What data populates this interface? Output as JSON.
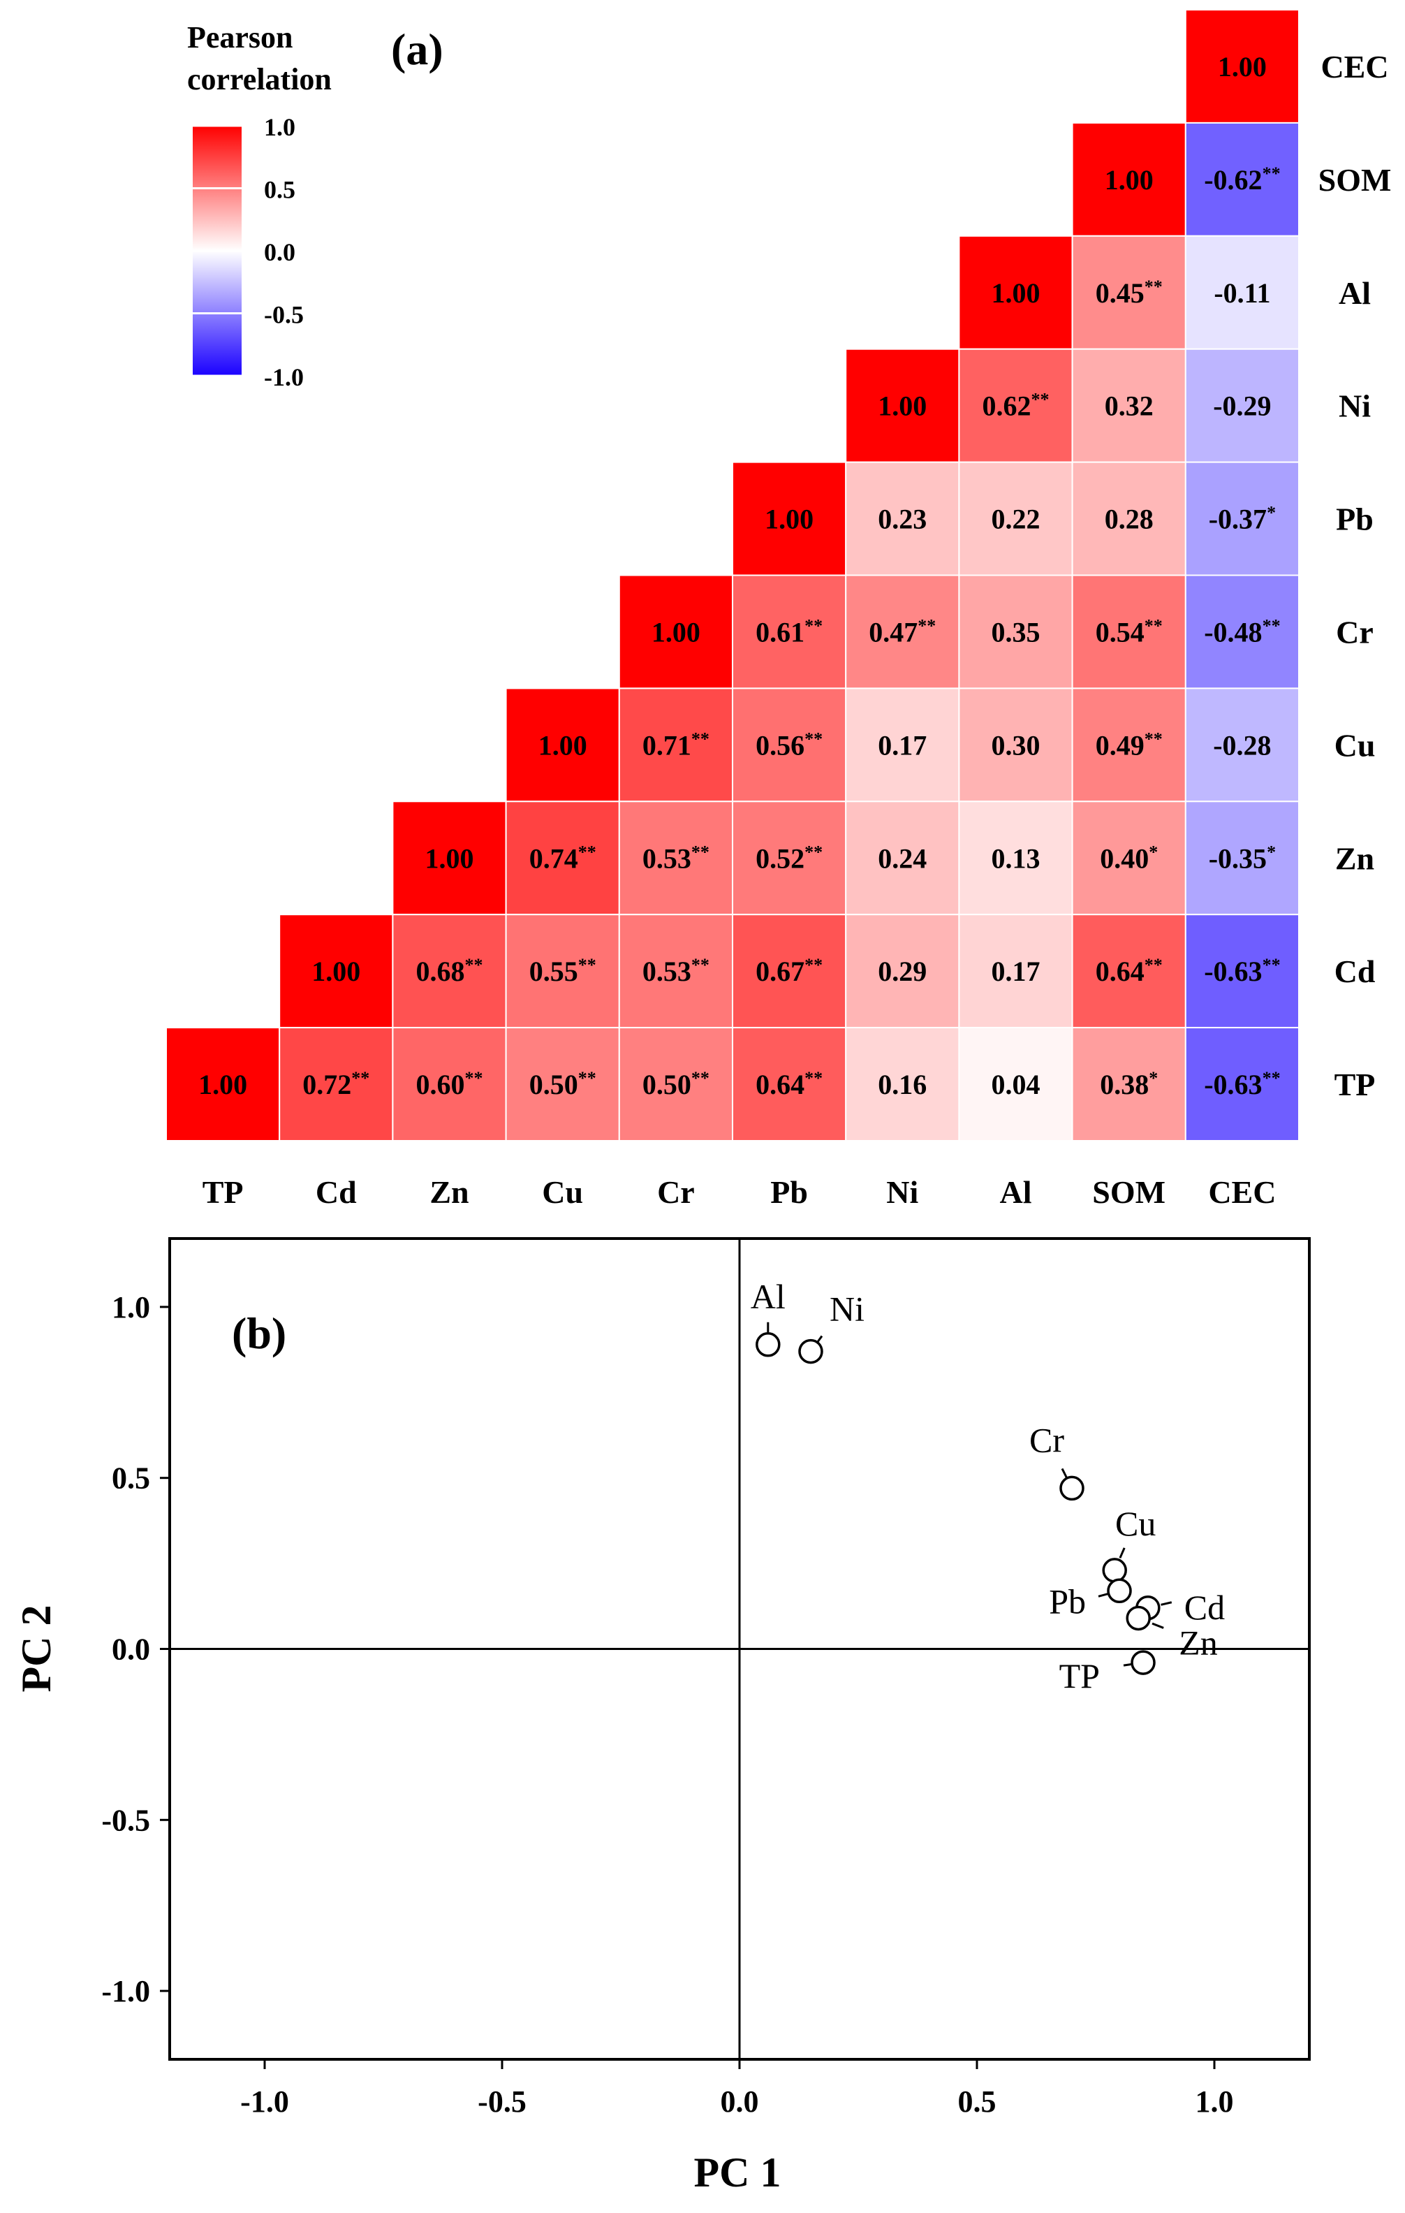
{
  "chart_data": [
    {
      "type": "heatmap",
      "panel_label": "(a)",
      "legend_title": [
        "Pearson",
        "correlation"
      ],
      "colorbar_ticks": [
        "1.0",
        "0.5",
        "0.0",
        "-0.5",
        "-1.0"
      ],
      "colorbar_range": [
        -1.0,
        1.0
      ],
      "colors": {
        "positive": "#ff0000",
        "zero": "#ffffff",
        "negative": "#1a00ff"
      },
      "x_labels": [
        "TP",
        "Cd",
        "Zn",
        "Cu",
        "Cr",
        "Pb",
        "Ni",
        "Al",
        "SOM",
        "CEC"
      ],
      "y_labels_bottom_to_top": [
        "TP",
        "Cd",
        "Zn",
        "Cu",
        "Cr",
        "Pb",
        "Ni",
        "Al",
        "SOM",
        "CEC"
      ],
      "rows": [
        {
          "var": "CEC",
          "cells": [
            {
              "col": "CEC",
              "text": "1.00",
              "sig": "",
              "v": 1.0
            }
          ]
        },
        {
          "var": "SOM",
          "cells": [
            {
              "col": "SOM",
              "text": "1.00",
              "sig": "",
              "v": 1.0
            },
            {
              "col": "CEC",
              "text": "-0.62",
              "sig": "**",
              "v": -0.62
            }
          ]
        },
        {
          "var": "Al",
          "cells": [
            {
              "col": "Al",
              "text": "1.00",
              "sig": "",
              "v": 1.0
            },
            {
              "col": "SOM",
              "text": "0.45",
              "sig": "**",
              "v": 0.45
            },
            {
              "col": "CEC",
              "text": "-0.11",
              "sig": "",
              "v": -0.11
            }
          ]
        },
        {
          "var": "Ni",
          "cells": [
            {
              "col": "Ni",
              "text": "1.00",
              "sig": "",
              "v": 1.0
            },
            {
              "col": "Al",
              "text": "0.62",
              "sig": "**",
              "v": 0.62
            },
            {
              "col": "SOM",
              "text": "0.32",
              "sig": "",
              "v": 0.32
            },
            {
              "col": "CEC",
              "text": "-0.29",
              "sig": "",
              "v": -0.29
            }
          ]
        },
        {
          "var": "Pb",
          "cells": [
            {
              "col": "Pb",
              "text": "1.00",
              "sig": "",
              "v": 1.0
            },
            {
              "col": "Ni",
              "text": "0.23",
              "sig": "",
              "v": 0.23
            },
            {
              "col": "Al",
              "text": "0.22",
              "sig": "",
              "v": 0.22
            },
            {
              "col": "SOM",
              "text": "0.28",
              "sig": "",
              "v": 0.28
            },
            {
              "col": "CEC",
              "text": "-0.37",
              "sig": "*",
              "v": -0.37
            }
          ]
        },
        {
          "var": "Cr",
          "cells": [
            {
              "col": "Cr",
              "text": "1.00",
              "sig": "",
              "v": 1.0
            },
            {
              "col": "Pb",
              "text": "0.61",
              "sig": "**",
              "v": 0.61
            },
            {
              "col": "Ni",
              "text": "0.47",
              "sig": "**",
              "v": 0.47
            },
            {
              "col": "Al",
              "text": "0.35",
              "sig": "",
              "v": 0.35
            },
            {
              "col": "SOM",
              "text": "0.54",
              "sig": "**",
              "v": 0.54
            },
            {
              "col": "CEC",
              "text": "-0.48",
              "sig": "**",
              "v": -0.48
            }
          ]
        },
        {
          "var": "Cu",
          "cells": [
            {
              "col": "Cu",
              "text": "1.00",
              "sig": "",
              "v": 1.0
            },
            {
              "col": "Cr",
              "text": "0.71",
              "sig": "**",
              "v": 0.71
            },
            {
              "col": "Pb",
              "text": "0.56",
              "sig": "**",
              "v": 0.56
            },
            {
              "col": "Ni",
              "text": "0.17",
              "sig": "",
              "v": 0.17
            },
            {
              "col": "Al",
              "text": "0.30",
              "sig": "",
              "v": 0.3
            },
            {
              "col": "SOM",
              "text": "0.49",
              "sig": "**",
              "v": 0.49
            },
            {
              "col": "CEC",
              "text": "-0.28",
              "sig": "",
              "v": -0.28
            }
          ]
        },
        {
          "var": "Zn",
          "cells": [
            {
              "col": "Zn",
              "text": "1.00",
              "sig": "",
              "v": 1.0
            },
            {
              "col": "Cu",
              "text": "0.74",
              "sig": "**",
              "v": 0.74
            },
            {
              "col": "Cr",
              "text": "0.53",
              "sig": "**",
              "v": 0.53
            },
            {
              "col": "Pb",
              "text": "0.52",
              "sig": "**",
              "v": 0.52
            },
            {
              "col": "Ni",
              "text": "0.24",
              "sig": "",
              "v": 0.24
            },
            {
              "col": "Al",
              "text": "0.13",
              "sig": "",
              "v": 0.13
            },
            {
              "col": "SOM",
              "text": "0.40",
              "sig": "*",
              "v": 0.4
            },
            {
              "col": "CEC",
              "text": "-0.35",
              "sig": "*",
              "v": -0.35
            }
          ]
        },
        {
          "var": "Cd",
          "cells": [
            {
              "col": "Cd",
              "text": "1.00",
              "sig": "",
              "v": 1.0
            },
            {
              "col": "Zn",
              "text": "0.68",
              "sig": "**",
              "v": 0.68
            },
            {
              "col": "Cu",
              "text": "0.55",
              "sig": "**",
              "v": 0.55
            },
            {
              "col": "Cr",
              "text": "0.53",
              "sig": "**",
              "v": 0.53
            },
            {
              "col": "Pb",
              "text": "0.67",
              "sig": "**",
              "v": 0.67
            },
            {
              "col": "Ni",
              "text": "0.29",
              "sig": "",
              "v": 0.29
            },
            {
              "col": "Al",
              "text": "0.17",
              "sig": "",
              "v": 0.17
            },
            {
              "col": "SOM",
              "text": "0.64",
              "sig": "**",
              "v": 0.64
            },
            {
              "col": "CEC",
              "text": "-0.63",
              "sig": "**",
              "v": -0.63
            }
          ]
        },
        {
          "var": "TP",
          "cells": [
            {
              "col": "TP",
              "text": "1.00",
              "sig": "",
              "v": 1.0
            },
            {
              "col": "Cd",
              "text": "0.72",
              "sig": "**",
              "v": 0.72
            },
            {
              "col": "Zn",
              "text": "0.60",
              "sig": "**",
              "v": 0.6
            },
            {
              "col": "Cu",
              "text": "0.50",
              "sig": "**",
              "v": 0.5
            },
            {
              "col": "Cr",
              "text": "0.50",
              "sig": "**",
              "v": 0.5
            },
            {
              "col": "Pb",
              "text": "0.64",
              "sig": "**",
              "v": 0.64
            },
            {
              "col": "Ni",
              "text": "0.16",
              "sig": "",
              "v": 0.16
            },
            {
              "col": "Al",
              "text": "0.04",
              "sig": "",
              "v": 0.04
            },
            {
              "col": "SOM",
              "text": "0.38",
              "sig": "*",
              "v": 0.38
            },
            {
              "col": "CEC",
              "text": "-0.63",
              "sig": "**",
              "v": -0.63
            }
          ]
        }
      ]
    },
    {
      "type": "scatter",
      "panel_label": "(b)",
      "xlabel": "PC 1",
      "ylabel": "PC 2",
      "xlim": [
        -1.2,
        1.2
      ],
      "ylim": [
        -1.2,
        1.2
      ],
      "xticks": [
        "-1.0",
        "-0.5",
        "0.0",
        "0.5",
        "1.0"
      ],
      "yticks": [
        "1.0",
        "0.5",
        "0.0",
        "-0.5",
        "-1.0"
      ],
      "points": [
        {
          "label": "Al",
          "x": 0.06,
          "y": 0.89
        },
        {
          "label": "Ni",
          "x": 0.15,
          "y": 0.87
        },
        {
          "label": "Cr",
          "x": 0.7,
          "y": 0.47
        },
        {
          "label": "Cu",
          "x": 0.79,
          "y": 0.23
        },
        {
          "label": "Pb",
          "x": 0.8,
          "y": 0.17
        },
        {
          "label": "Cd",
          "x": 0.86,
          "y": 0.12
        },
        {
          "label": "Zn",
          "x": 0.84,
          "y": 0.09
        },
        {
          "label": "TP",
          "x": 0.85,
          "y": -0.04
        }
      ]
    }
  ]
}
